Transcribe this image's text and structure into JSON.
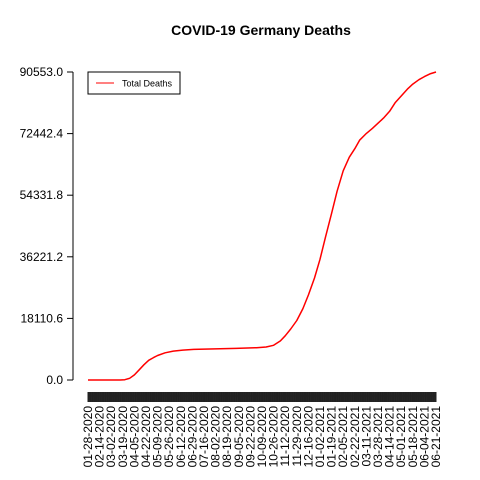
{
  "chart_data": {
    "type": "line",
    "title": "COVID-19 Germany Deaths",
    "xlabel": "",
    "ylabel": "",
    "ylim": [
      0,
      90553
    ],
    "y_ticks": [
      "0.0",
      "18110.6",
      "36221.2",
      "54331.8",
      "72442.4",
      "90553.0"
    ],
    "y_tick_values": [
      0,
      18110.6,
      36221.2,
      54331.8,
      72442.4,
      90553.0
    ],
    "x_tick_labels": [
      "01-28-2020",
      "02-14-2020",
      "03-02-2020",
      "03-19-2020",
      "04-05-2020",
      "04-22-2020",
      "05-09-2020",
      "05-26-2020",
      "06-12-2020",
      "06-29-2020",
      "07-16-2020",
      "08-02-2020",
      "08-19-2020",
      "09-05-2020",
      "09-22-2020",
      "10-09-2020",
      "10-26-2020",
      "11-12-2020",
      "11-29-2020",
      "12-16-2020",
      "01-02-2021",
      "01-19-2021",
      "02-05-2021",
      "02-22-2021",
      "03-11-2021",
      "03-28-2021",
      "04-14-2021",
      "05-01-2021",
      "05-18-2021",
      "06-04-2021",
      "06-21-2021"
    ],
    "legend_position": "top-left",
    "grid": false,
    "color": "#ff0000",
    "series": [
      {
        "name": "Total Deaths",
        "x": [
          "01-28-2020",
          "03-01-2020",
          "03-15-2020",
          "03-22-2020",
          "03-29-2020",
          "04-05-2020",
          "04-12-2020",
          "04-19-2020",
          "04-26-2020",
          "05-03-2020",
          "05-09-2020",
          "05-20-2020",
          "06-01-2020",
          "06-15-2020",
          "07-01-2020",
          "08-01-2020",
          "09-01-2020",
          "10-01-2020",
          "10-15-2020",
          "10-26-2020",
          "11-05-2020",
          "11-12-2020",
          "11-20-2020",
          "11-29-2020",
          "12-08-2020",
          "12-16-2020",
          "12-25-2020",
          "01-02-2021",
          "01-10-2021",
          "01-19-2021",
          "01-27-2021",
          "02-05-2021",
          "02-14-2021",
          "02-22-2021",
          "03-01-2021",
          "03-11-2021",
          "03-20-2021",
          "03-28-2021",
          "04-05-2021",
          "04-14-2021",
          "04-22-2021",
          "05-01-2021",
          "05-10-2021",
          "05-18-2021",
          "05-27-2021",
          "06-04-2021",
          "06-12-2021",
          "06-21-2021"
        ],
        "y": [
          0,
          0,
          10,
          100,
          500,
          1500,
          3000,
          4500,
          5800,
          6600,
          7200,
          8000,
          8500,
          8800,
          9000,
          9150,
          9300,
          9500,
          9700,
          10200,
          11500,
          13000,
          15000,
          17500,
          21000,
          25000,
          30000,
          35500,
          42000,
          49000,
          55500,
          61500,
          65500,
          68000,
          70500,
          72500,
          74000,
          75500,
          77000,
          79000,
          81500,
          83500,
          85500,
          87000,
          88300,
          89200,
          90000,
          90553
        ]
      }
    ]
  }
}
